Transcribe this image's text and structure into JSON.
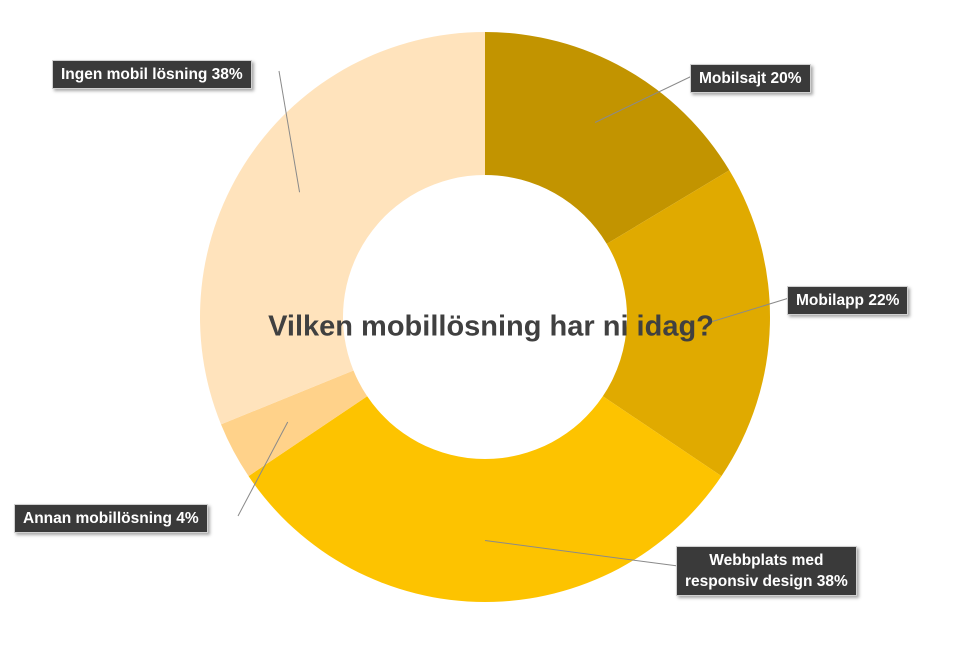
{
  "chart_data": {
    "type": "pie",
    "variant": "donut",
    "title": "Vilken mobillösning har ni idag?",
    "legend": "none",
    "slices": [
      {
        "name": "Mobilsajt",
        "value": 20,
        "label": "Mobilsajt 20%",
        "color": "#c29400"
      },
      {
        "name": "Mobilapp",
        "value": 22,
        "label": "Mobilapp 22%",
        "color": "#e0aa00"
      },
      {
        "name": "Webbplats med responsiv design",
        "value": 38,
        "label_lines": [
          "Webbplats med",
          "responsiv design 38%"
        ],
        "color": "#fdc300"
      },
      {
        "name": "Annan mobillösning",
        "value": 4,
        "label": "Annan mobillösning 4%",
        "color": "#ffd28a"
      },
      {
        "name": "Ingen mobil lösning",
        "value": 38,
        "label": "Ingen mobil lösning 38%",
        "color": "#ffe3bc"
      }
    ]
  }
}
